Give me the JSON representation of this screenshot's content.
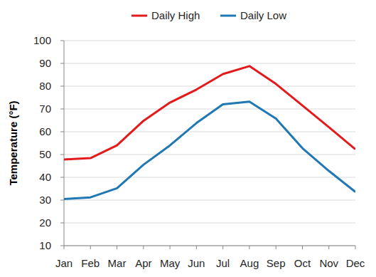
{
  "chart_data": {
    "type": "line",
    "y_label": "Temperature (°F)",
    "categories": [
      "Jan",
      "Feb",
      "Mar",
      "Apr",
      "May",
      "Jun",
      "Jul",
      "Aug",
      "Sep",
      "Oct",
      "Nov",
      "Dec"
    ],
    "series": [
      {
        "name": "Daily High",
        "color": "#e31a1c",
        "values": [
          47.8,
          48.4,
          54,
          64.8,
          72.8,
          78.5,
          85.3,
          88.8,
          81,
          71.5,
          62,
          52.3
        ]
      },
      {
        "name": "Daily Low",
        "color": "#1f78b4",
        "values": [
          30.5,
          31.2,
          35.2,
          45.5,
          54,
          63.8,
          72,
          73.2,
          65.8,
          52.8,
          42.8,
          33.6
        ]
      }
    ],
    "ylim": [
      10,
      100
    ],
    "yticks": [
      10,
      20,
      30,
      40,
      50,
      60,
      70,
      80,
      90,
      100
    ],
    "grid": true,
    "legend": "top"
  }
}
